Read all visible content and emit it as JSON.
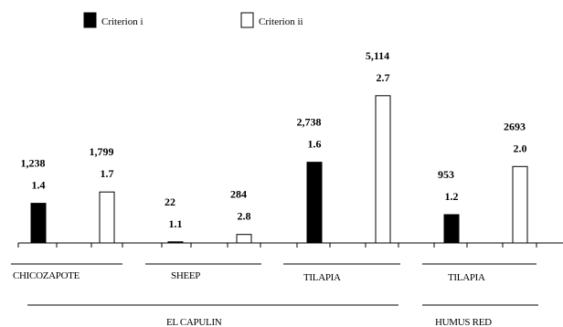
{
  "chart_data": {
    "type": "bar",
    "legend": {
      "position": "top-left",
      "entries": [
        {
          "name": "Criterion i",
          "fill": "#000000"
        },
        {
          "name": "Criterion ii",
          "fill": "#ffffff"
        }
      ]
    },
    "categories": [
      {
        "label": "CHICOZAPOTE",
        "group": "EL CAPULIN"
      },
      {
        "label": "SHEEP",
        "group": "EL CAPULIN"
      },
      {
        "label": "TILAPIA",
        "group": "EL CAPULIN"
      },
      {
        "label": "TILAPIA",
        "group": "HUMUS RED"
      }
    ],
    "groups": [
      "EL CAPULIN",
      "HUMUS RED"
    ],
    "series": [
      {
        "name": "Criterion i",
        "values": [
          1.4,
          0.04,
          2.85,
          1.0
        ],
        "value_labels": [
          "1.4",
          "1.1",
          "1.6",
          "1.2"
        ],
        "count_labels": [
          "1,238",
          "22",
          "2,738",
          "953"
        ]
      },
      {
        "name": "Criterion ii",
        "values": [
          1.8,
          0.3,
          5.2,
          2.7
        ],
        "value_labels": [
          "1.7",
          "2.8",
          "2.7",
          "2.0"
        ],
        "count_labels": [
          "1,799",
          "284",
          "5,114",
          "2693"
        ]
      }
    ],
    "ylim": [
      0,
      5.5
    ],
    "grid": false,
    "y_axis_visible": false
  }
}
